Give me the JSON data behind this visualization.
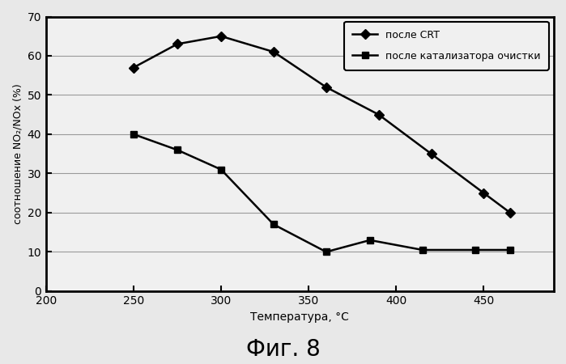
{
  "crt_x": [
    250,
    275,
    300,
    330,
    360,
    390,
    420,
    450,
    465
  ],
  "crt_y": [
    57,
    63,
    65,
    61,
    52,
    45,
    35,
    25,
    20
  ],
  "cat_x": [
    250,
    275,
    300,
    330,
    360,
    385,
    415,
    445,
    465
  ],
  "cat_y": [
    40,
    36,
    31,
    17,
    10,
    13,
    10.5,
    10.5,
    10.5
  ],
  "xlabel": "Температура, °C",
  "ylabel": "соотношение NO₂/NOx (%)",
  "label_crt": "после CRT",
  "label_cat": "после катализатора очистки",
  "fig_label": "Фиг. 8",
  "xlim": [
    200,
    490
  ],
  "ylim": [
    0,
    70
  ],
  "xticks": [
    200,
    250,
    300,
    350,
    400,
    450
  ],
  "yticks": [
    0,
    10,
    20,
    30,
    40,
    50,
    60,
    70
  ],
  "line_color": "#000000",
  "bg_color": "#e8e8e8",
  "plot_bg_color": "#f0f0f0",
  "grid_color": "#999999"
}
